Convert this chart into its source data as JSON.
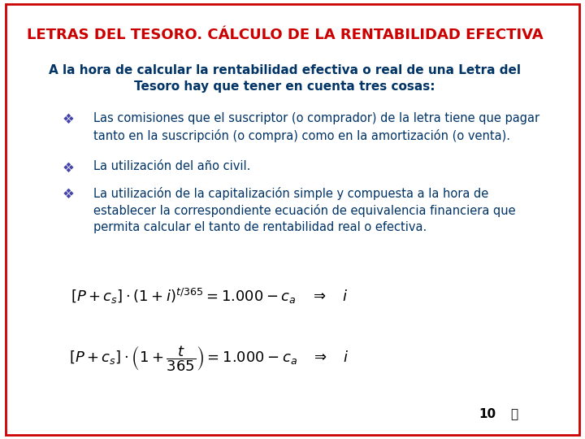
{
  "title": "LETRAS DEL TESORO. CÁLCULO DE LA RENTABILIDAD EFECTIVA",
  "title_color": "#CC0000",
  "title_fontsize": 13,
  "bg_color": "#FFFFFF",
  "intro_text": "A la hora de calcular la rentabilidad efectiva o real de una Letra del\nTesoro hay que tener en cuenta tres cosas:",
  "intro_color": "#003366",
  "intro_fontsize": 11,
  "bullet_color": "#003366",
  "bullet_fontsize": 10.5,
  "bullets": [
    "Las comisiones que el suscriptor (o comprador) de la letra tiene que pagar\ntanto en la suscripción (o compra) como en la amortización (o venta).",
    "La utilización del año civil.",
    "La utilización de la capitalización simple y compuesta a la hora de\nestablecer la correspondiente ecuación de equivalencia financiera que\npermita calcular el tanto de rentabilidad real o efectiva."
  ],
  "formula1": "[P+cₛ]·(1+i)ᵗ/³⁶⁵ = 1.000 - cₐ   ⇒   i",
  "formula2_left": "[P+cₛ]·",
  "formula2_frac_num": "t",
  "formula2_frac_den": "365",
  "formula2_right": " = 1.000 - cₐ   ⇒   i",
  "formula_color": "#000000",
  "formula_fontsize": 13,
  "page_number": "10",
  "border_color": "#CC0000"
}
